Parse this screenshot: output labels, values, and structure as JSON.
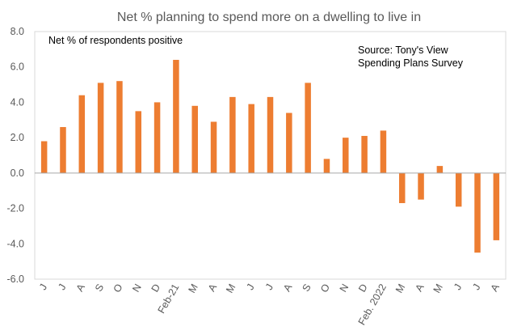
{
  "chart_data": {
    "type": "bar",
    "title": "Net % planning to spend more on a dwelling to live in",
    "annotations": {
      "series_note": "Net % of respondents positive",
      "source_line1": "Source: Tony's View",
      "source_line2": "Spending Plans Survey"
    },
    "categories": [
      "J",
      "J",
      "A",
      "S",
      "O",
      "N",
      "D",
      "Feb-21",
      "M",
      "A",
      "M",
      "J",
      "J",
      "A",
      "S",
      "O",
      "N",
      "D",
      "Feb. 2022",
      "M",
      "A",
      "M",
      "J",
      "J",
      "A"
    ],
    "values": [
      1.8,
      2.6,
      4.4,
      5.1,
      5.2,
      3.5,
      4.0,
      6.4,
      3.8,
      2.9,
      4.3,
      3.9,
      4.3,
      3.4,
      5.1,
      0.8,
      2.0,
      2.1,
      2.4,
      -1.7,
      -1.5,
      0.4,
      -1.9,
      -4.5,
      -3.8
    ],
    "yticks": [
      "8.0",
      "6.0",
      "4.0",
      "2.0",
      "0.0",
      "-2.0",
      "-4.0",
      "-6.0"
    ],
    "ylim": [
      -6,
      8
    ],
    "xlabel": "",
    "ylabel": "",
    "grid": false,
    "bar_color": "#ED7D31"
  }
}
